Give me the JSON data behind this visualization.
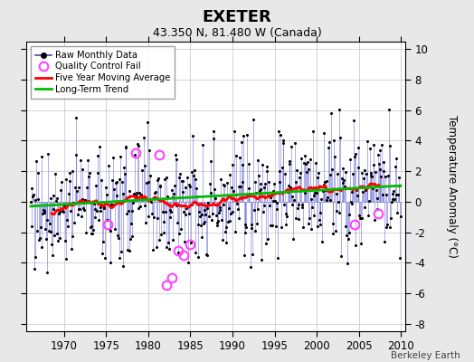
{
  "title": "EXETER",
  "subtitle": "43.350 N, 81.480 W (Canada)",
  "ylabel": "Temperature Anomaly (°C)",
  "attribution": "Berkeley Earth",
  "ylim": [
    -8.5,
    10.5
  ],
  "xlim": [
    1965.5,
    2010.5
  ],
  "yticks": [
    -8,
    -6,
    -4,
    -2,
    0,
    2,
    4,
    6,
    8,
    10
  ],
  "xticks": [
    1970,
    1975,
    1980,
    1985,
    1990,
    1995,
    2000,
    2005,
    2010
  ],
  "bg_color": "#e8e8e8",
  "plot_bg_color": "#ffffff",
  "raw_line_color": "#4444cc",
  "raw_marker_color": "#000000",
  "qc_fail_color": "#ff44ff",
  "moving_avg_color": "#ff0000",
  "trend_color": "#00bb00",
  "title_fontsize": 13,
  "subtitle_fontsize": 9,
  "seed": 77
}
